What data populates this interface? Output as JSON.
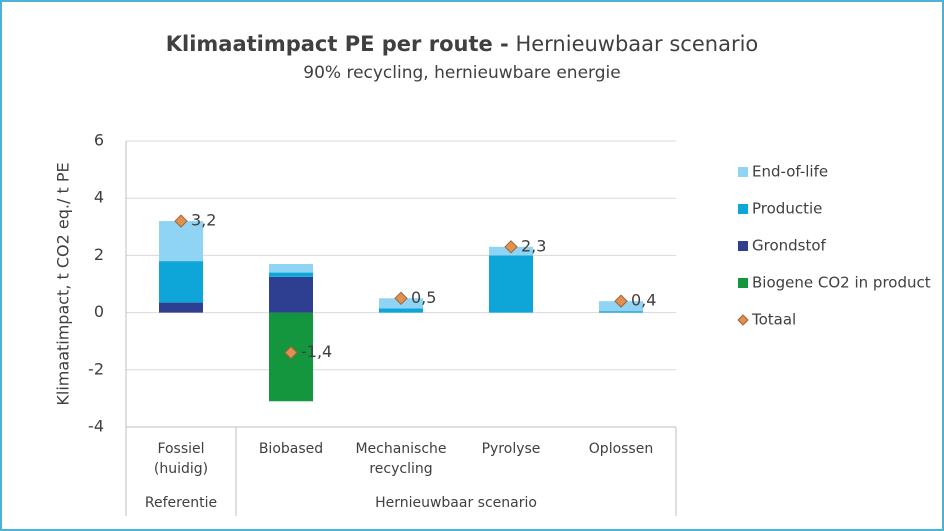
{
  "chart_data": {
    "type": "bar",
    "stacked": true,
    "title": "Klimaatimpact PE per route -",
    "title_suffix": "Hernieuwbaar scenario",
    "subtitle": "90% recycling, hernieuwbare energie",
    "y_label": "Klimaatimpact, t CO2 eq./ t PE",
    "categories": [
      "Fossiel\n(huidig)",
      "Biobased",
      "Mechanische\nrecycling",
      "Pyrolyse",
      "Oplossen"
    ],
    "category_groups": [
      "Referentie",
      "Hernieuwbaar scenario",
      "Hernieuwbaar scenario",
      "Hernieuwbaar scenario",
      "Hernieuwbaar scenario"
    ],
    "series": [
      {
        "name": "End-of-life",
        "color": "#8fd3f5",
        "values": [
          1.4,
          0.3,
          0.35,
          0.3,
          0.35
        ]
      },
      {
        "name": "Productie",
        "color": "#0ea5d9",
        "values": [
          1.45,
          0.15,
          0.15,
          2.0,
          0.05
        ]
      },
      {
        "name": "Grondstof",
        "color": "#2e3f91",
        "values": [
          0.35,
          1.25,
          0,
          0,
          0
        ]
      },
      {
        "name": "Biogene CO2 in product",
        "color": "#14963f",
        "values": [
          0,
          -3.1,
          0,
          0,
          0
        ]
      }
    ],
    "totals": {
      "name": "Totaal",
      "color": "#e0904f",
      "values": [
        3.2,
        -1.4,
        0.5,
        2.3,
        0.4
      ],
      "value_labels": [
        "3,2",
        "-1,4",
        "0,5",
        "2,3",
        "0,4"
      ]
    },
    "ylim": [
      -4,
      6
    ],
    "yticks": [
      -4,
      -2,
      0,
      2,
      4,
      6
    ],
    "grid": true,
    "legend": "right"
  }
}
